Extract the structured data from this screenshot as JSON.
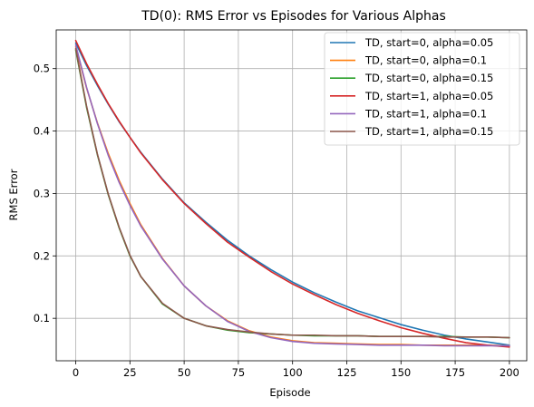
{
  "chart_data": {
    "type": "line",
    "title": "TD(0): RMS Error vs Episodes for Various Alphas",
    "xlabel": "Episode",
    "ylabel": "RMS Error",
    "xlim": [
      -9,
      208
    ],
    "ylim": [
      0.032,
      0.562
    ],
    "xticks": [
      0,
      25,
      50,
      75,
      100,
      125,
      150,
      175,
      200
    ],
    "yticks": [
      0.1,
      0.2,
      0.3,
      0.4,
      0.5
    ],
    "ytick_labels": [
      "0.1",
      "0.2",
      "0.3",
      "0.4",
      "0.5"
    ],
    "grid": true,
    "legend_position": "upper right",
    "x": [
      0,
      5,
      10,
      15,
      20,
      25,
      30,
      40,
      50,
      60,
      70,
      80,
      90,
      100,
      110,
      120,
      130,
      140,
      150,
      160,
      170,
      180,
      190,
      200
    ],
    "series": [
      {
        "name": "TD, start=0, alpha=0.05",
        "color": "#1f77b4",
        "values": [
          0.541,
          0.505,
          0.473,
          0.443,
          0.415,
          0.39,
          0.366,
          0.323,
          0.285,
          0.254,
          0.225,
          0.2,
          0.178,
          0.158,
          0.141,
          0.126,
          0.112,
          0.101,
          0.09,
          0.081,
          0.073,
          0.067,
          0.062,
          0.057
        ]
      },
      {
        "name": "TD, start=0, alpha=0.1",
        "color": "#ff7f0e",
        "values": [
          0.535,
          0.469,
          0.413,
          0.364,
          0.321,
          0.284,
          0.25,
          0.196,
          0.152,
          0.12,
          0.096,
          0.08,
          0.07,
          0.064,
          0.061,
          0.06,
          0.059,
          0.058,
          0.058,
          0.057,
          0.057,
          0.057,
          0.057,
          0.056
        ]
      },
      {
        "name": "TD, start=0, alpha=0.15",
        "color": "#2ca02c",
        "values": [
          0.53,
          0.438,
          0.362,
          0.298,
          0.245,
          0.2,
          0.167,
          0.123,
          0.1,
          0.088,
          0.081,
          0.077,
          0.075,
          0.073,
          0.072,
          0.072,
          0.072,
          0.071,
          0.071,
          0.071,
          0.071,
          0.07,
          0.07,
          0.069
        ]
      },
      {
        "name": "TD, start=1, alpha=0.05",
        "color": "#d62728",
        "values": [
          0.545,
          0.508,
          0.475,
          0.444,
          0.416,
          0.39,
          0.365,
          0.322,
          0.284,
          0.252,
          0.222,
          0.198,
          0.175,
          0.155,
          0.138,
          0.122,
          0.108,
          0.096,
          0.085,
          0.076,
          0.068,
          0.061,
          0.057,
          0.054
        ]
      },
      {
        "name": "TD, start=1, alpha=0.1",
        "color": "#9467bd",
        "values": [
          0.538,
          0.47,
          0.412,
          0.361,
          0.318,
          0.281,
          0.248,
          0.195,
          0.152,
          0.12,
          0.095,
          0.079,
          0.069,
          0.063,
          0.06,
          0.059,
          0.058,
          0.057,
          0.057,
          0.057,
          0.056,
          0.056,
          0.056,
          0.056
        ]
      },
      {
        "name": "TD, start=1, alpha=0.15",
        "color": "#8c564b",
        "values": [
          0.532,
          0.44,
          0.363,
          0.299,
          0.246,
          0.201,
          0.167,
          0.124,
          0.1,
          0.088,
          0.082,
          0.078,
          0.075,
          0.073,
          0.073,
          0.072,
          0.072,
          0.071,
          0.071,
          0.071,
          0.07,
          0.07,
          0.07,
          0.069
        ]
      }
    ]
  }
}
